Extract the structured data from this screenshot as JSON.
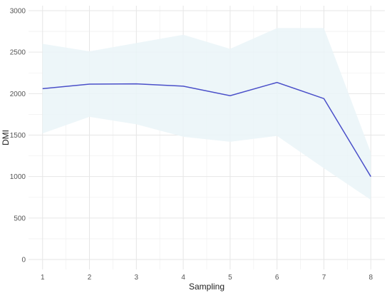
{
  "chart_data": {
    "type": "line",
    "xlabel": "Sampling",
    "ylabel": "DMI",
    "x": [
      1,
      2,
      3,
      4,
      5,
      6,
      7,
      8
    ],
    "xlim": [
      0.7,
      8.3
    ],
    "ylim": [
      -120,
      3060
    ],
    "yticks": [
      0,
      500,
      1000,
      1500,
      2000,
      2500,
      3000
    ],
    "grid": true,
    "series": [
      {
        "values": [
          2060,
          2115,
          2118,
          2090,
          1975,
          2135,
          1940,
          1000
        ],
        "lower": [
          1520,
          1720,
          1630,
          1480,
          1420,
          1490,
          1100,
          720
        ],
        "upper": [
          2600,
          2510,
          2610,
          2710,
          2540,
          2790,
          2790,
          1290
        ]
      }
    ],
    "colors": {
      "line": "#4a4fc9",
      "band": "#eaf4f8",
      "grid_major": "#e6e6e6",
      "grid_minor": "#f2f2f2"
    }
  }
}
